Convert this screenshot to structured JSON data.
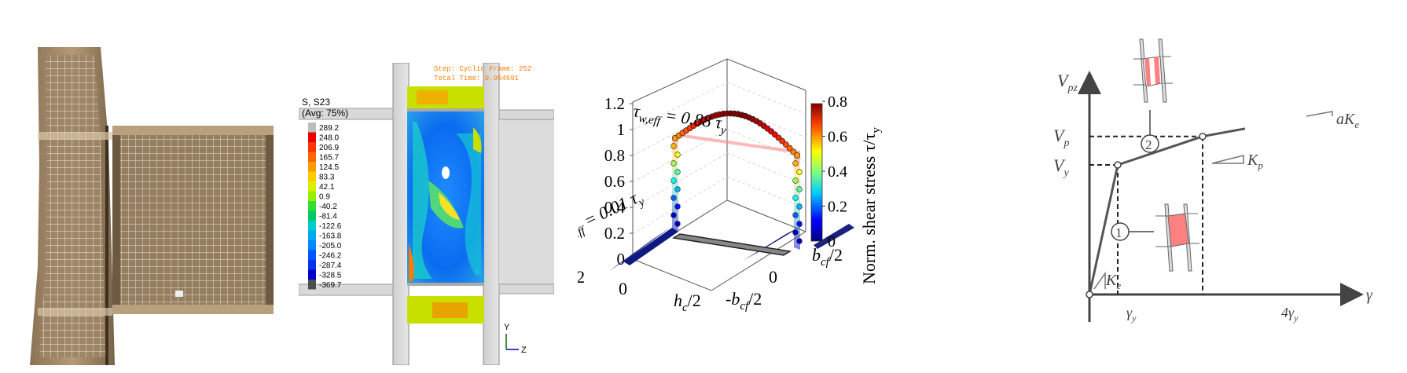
{
  "photo": {
    "description_hidden": ""
  },
  "fem": {
    "legend_title": "S, S23",
    "legend_avg": "(Avg: 75%)",
    "legend_values": [
      "289.2",
      "248.0",
      "206.9",
      "165.7",
      "124.5",
      "83.3",
      "42.1",
      "0.9",
      "-40.2",
      "-81.4",
      "-122.6",
      "-163.8",
      "-205.0",
      "-246.2",
      "-287.4",
      "-328.5",
      "-369.7"
    ],
    "legend_colors": [
      "#bdbdbd",
      "#e60000",
      "#ff3300",
      "#ff6600",
      "#ff9900",
      "#ffcc00",
      "#ddee00",
      "#99ee00",
      "#33dd33",
      "#00cc66",
      "#00cccc",
      "#00aaee",
      "#0088ff",
      "#0055ff",
      "#0033ee",
      "#0000cc",
      "#4d4d4d"
    ],
    "step_line": "Step: Cyclic   Frame: 252",
    "time_line": "Total Time: 0.954591",
    "axis_y": "Y",
    "axis_z": "Z"
  },
  "plot3d": {
    "z_ticks": [
      "0",
      "0.2",
      "0.4",
      "0.6",
      "0.8",
      "1",
      "1.2"
    ],
    "x_ticks": [
      "-h",
      "0",
      "h"
    ],
    "x_tick_sub": "c",
    "y_ticks": [
      "-b",
      "0",
      "b"
    ],
    "y_tick_sub": "cf",
    "half": "/2",
    "annotation_web": "τ",
    "annotation_web_sub": "w,eff",
    "annotation_web_val": " = 0.88 τ",
    "annotation_web_sub2": "y",
    "annotation_flange": "τ",
    "annotation_flange_sub": "f,eff",
    "annotation_flange_val": " = 0.01 τ",
    "annotation_flange_sub2": "y",
    "colorbar_ticks": [
      "0",
      "0.2",
      "0.4",
      "0.6",
      "0.8"
    ],
    "colorbar_label": "Norm. shear stress τ/τ",
    "colorbar_label_sub": "y"
  },
  "backbone": {
    "y_axis_label": "V",
    "y_axis_sub": "pz",
    "vp": "V",
    "vp_sub": "p",
    "vy": "V",
    "vy_sub": "y",
    "x_axis_label": "γ",
    "gy": "γ",
    "gy_sub": "y",
    "g4": "4γ",
    "g4_sub": "y",
    "ke": "K",
    "ke_sub": "e",
    "kp": "K",
    "kp_sub": "p",
    "ake": "aK",
    "ake_sub": "e",
    "circle1": "1",
    "circle2": "2"
  },
  "chart_data": {
    "type": "line",
    "title": "",
    "xlabel": "γ",
    "ylabel": "V_pz",
    "x_ticks": [
      "γ_y",
      "4γ_y"
    ],
    "y_ticks": [
      "V_y",
      "V_p"
    ],
    "series": [
      {
        "x": [
          0,
          1,
          4,
          5.5
        ],
        "y": [
          0,
          1.0,
          1.22,
          1.28
        ]
      }
    ],
    "stiffness_labels": [
      "K_e",
      "K_p",
      "aK_e"
    ],
    "regions": [
      "1",
      "2"
    ]
  }
}
